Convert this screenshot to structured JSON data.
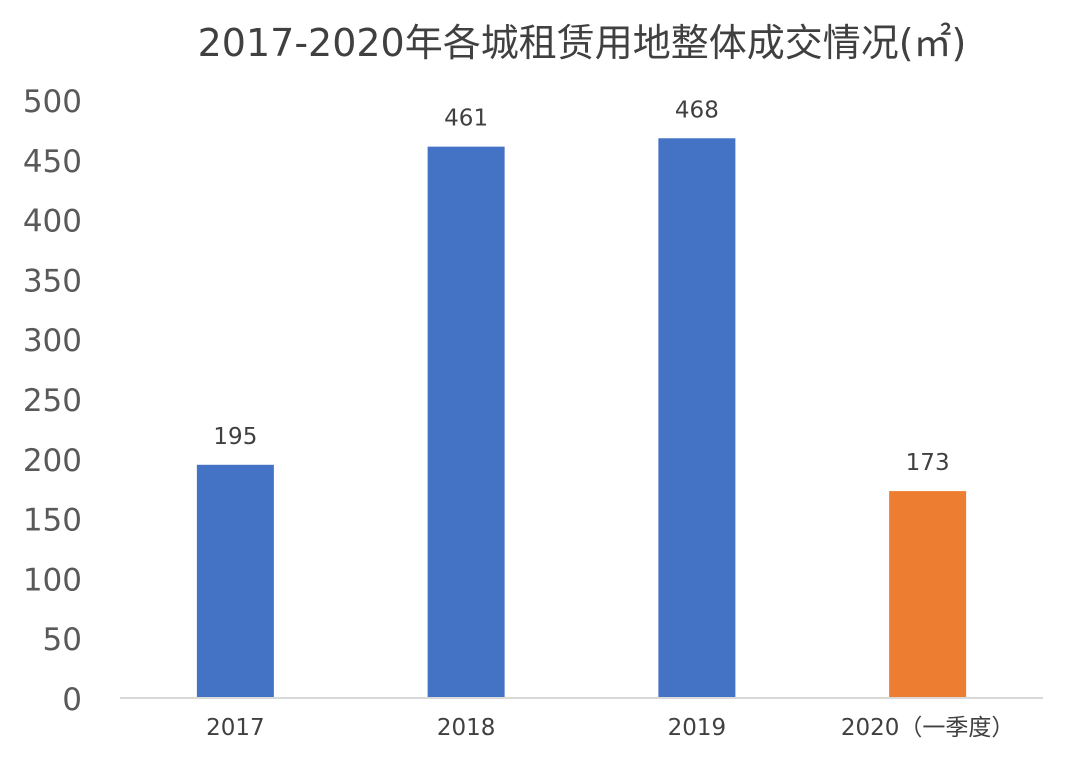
{
  "chart_data": {
    "type": "bar",
    "title": "2017-2020年各城租赁用地整体成交情况(㎡)",
    "xlabel": "",
    "ylabel": "",
    "categories": [
      "2017",
      "2018",
      "2019",
      "2020（一季度）"
    ],
    "values": [
      195,
      461,
      468,
      173
    ],
    "bar_colors": [
      "#4472C4",
      "#4472C4",
      "#4472C4",
      "#ED7D31"
    ],
    "ylim": [
      0,
      500
    ],
    "yticks": [
      0,
      50,
      100,
      150,
      200,
      250,
      300,
      350,
      400,
      450,
      500
    ],
    "grid": false,
    "legend": "none",
    "data_labels": true
  }
}
